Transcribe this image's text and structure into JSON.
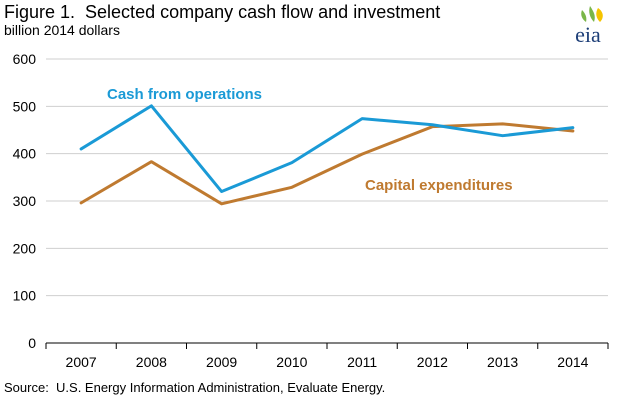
{
  "figure": {
    "title": "Figure 1.  Selected company cash flow and investment",
    "subtitle": "billion 2014 dollars",
    "source": "Source:  U.S. Energy Information Administration, Evaluate Energy.",
    "logo_text": "eia"
  },
  "colors": {
    "cash": "#1a9ad6",
    "capex": "#bf7a30",
    "grid": "#cfcfcf",
    "axis": "#000000",
    "logo_text": "#1e3f78",
    "logo_green": "#7ab648",
    "logo_yellow": "#f5c400"
  },
  "chart_data": {
    "type": "line",
    "title": "Figure 1.  Selected company cash flow and investment",
    "ylabel": "billion 2014 dollars",
    "xlabel": "",
    "categories": [
      "2007",
      "2008",
      "2009",
      "2010",
      "2011",
      "2012",
      "2013",
      "2014"
    ],
    "ylim": [
      0,
      600
    ],
    "yticks": [
      0,
      100,
      200,
      300,
      400,
      500,
      600
    ],
    "grid": true,
    "legend": "inline labels",
    "series": [
      {
        "name": "Cash from operations",
        "color": "#1a9ad6",
        "values": [
          410,
          501,
          320,
          381,
          474,
          461,
          438,
          455
        ]
      },
      {
        "name": "Capital expenditures",
        "color": "#bf7a30",
        "values": [
          296,
          383,
          294,
          329,
          399,
          457,
          463,
          448
        ]
      }
    ]
  }
}
